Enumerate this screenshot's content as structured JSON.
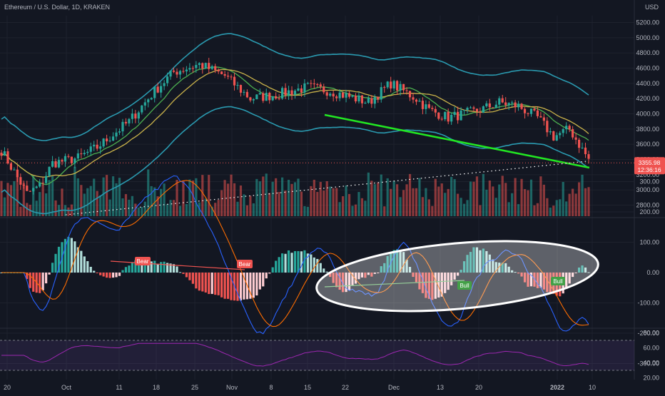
{
  "header": {
    "title": "Ethereum / U.S. Dollar, 1D, KRAKEN"
  },
  "currency": "USD",
  "price_tag": {
    "price": "3355.98",
    "countdown": "12:36:16",
    "value": 3355.98,
    "color": "#ef5350"
  },
  "colors": {
    "background": "#131722",
    "grid": "#1e222d",
    "axis_text": "#b2b5be",
    "up": "#26a69a",
    "down": "#ef5350",
    "bb": "#2a9ab0",
    "ema_short": "#4caf50",
    "ema_long": "#c9b24a",
    "trendline": "#22e622",
    "macd_line": "#2962ff",
    "signal_line": "#ff6d00",
    "rsi": "#9c27b0"
  },
  "chart_data": [
    {
      "type": "candlestick",
      "title": "Ethereum / U.S. Dollar, 1D, KRAKEN",
      "ylim": [
        2600,
        5400
      ],
      "y_ticks": [
        "5200.00",
        "5000.00",
        "4800.00",
        "4600.00",
        "4400.00",
        "4200.00",
        "4000.00",
        "3800.00",
        "3600.00",
        "3400.00",
        "3200.00",
        "3000.00",
        "2800.00"
      ],
      "x_ticks": [
        "20",
        "Oct",
        "11",
        "18",
        "25",
        "Nov",
        "8",
        "15",
        "22",
        "Dec",
        "13",
        "20",
        "2022",
        "10"
      ],
      "last_price": 3355.98,
      "overlays": [
        "bollinger bands",
        "ema",
        "ema",
        "trendline",
        "dotted line",
        "volume"
      ]
    },
    {
      "type": "histogram",
      "indicator": "MACD",
      "ylim": [
        -300,
        300
      ],
      "y_ticks": [
        "300.00",
        "200.00",
        "100.00",
        "0.00",
        "-100.00",
        "-200.00",
        "-300.00"
      ],
      "annotations": [
        "Bear",
        "Bear",
        "Bull",
        "Bull"
      ]
    },
    {
      "type": "line",
      "indicator": "RSI",
      "ylim": [
        20,
        80
      ],
      "y_ticks": [
        "80.00",
        "60.00",
        "40.00",
        "20.00"
      ],
      "bands": [
        30,
        70
      ]
    }
  ]
}
